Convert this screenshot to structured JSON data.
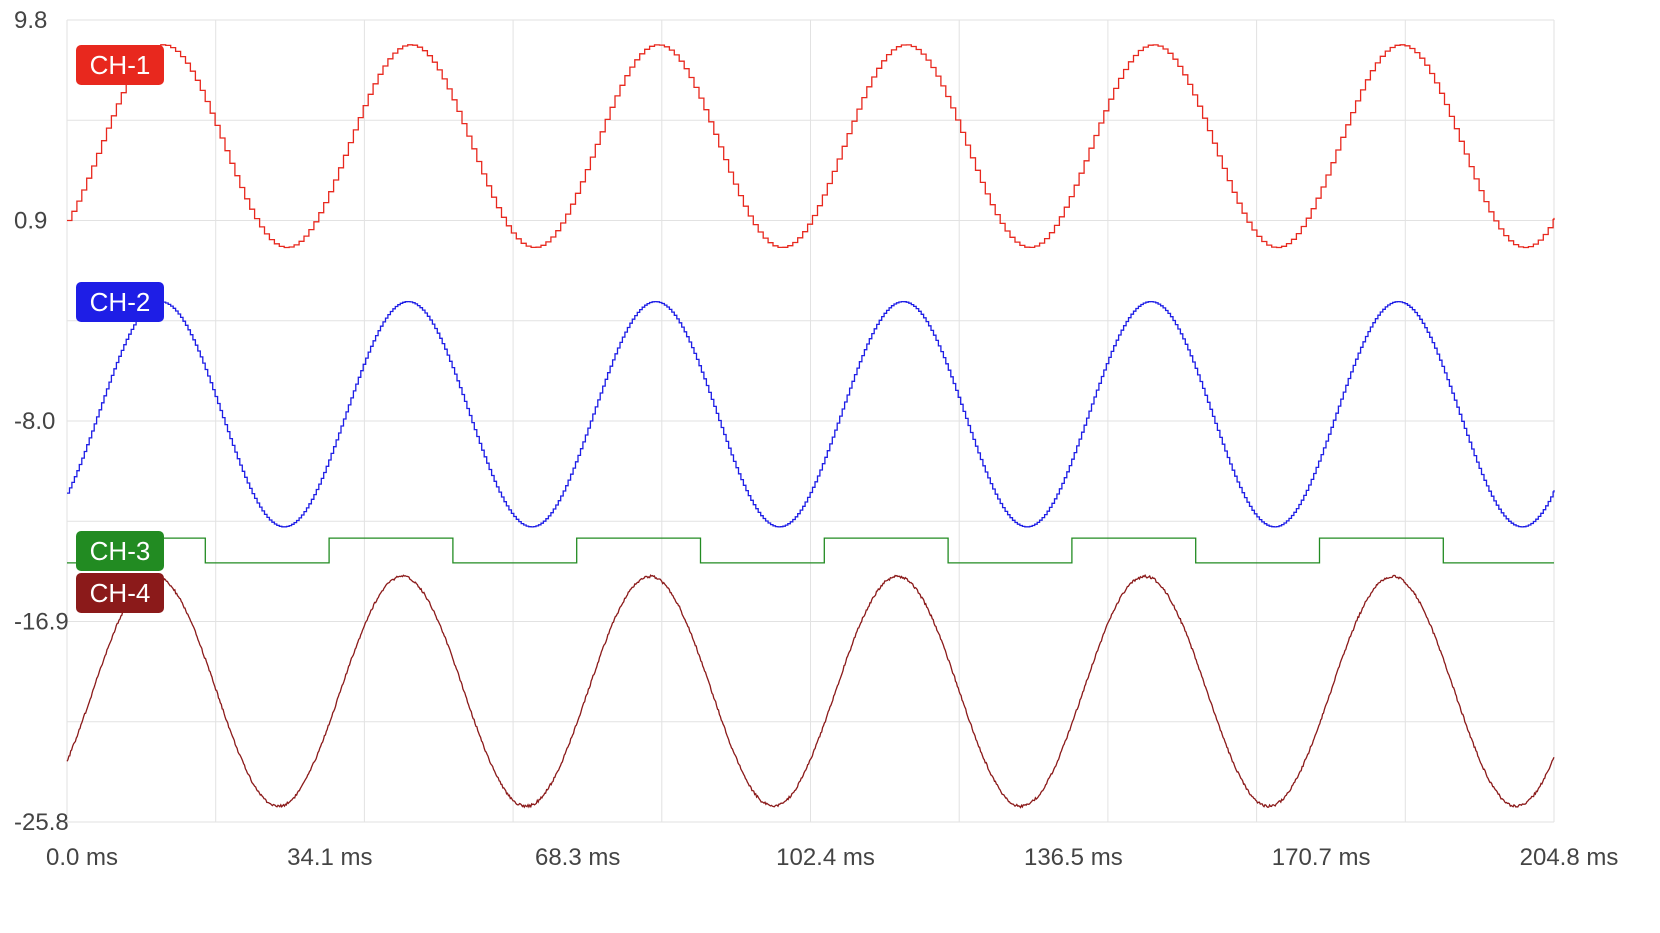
{
  "chart_data": {
    "type": "line",
    "title": "",
    "xlabel": "",
    "ylabel": "",
    "x_unit": "ms",
    "xlim": [
      0.0,
      204.8
    ],
    "ylim": [
      -25.8,
      9.8
    ],
    "x_ticks": [
      "0.0 ms",
      "34.1 ms",
      "68.3 ms",
      "102.4 ms",
      "136.5 ms",
      "170.7 ms",
      "204.8 ms"
    ],
    "y_ticks": [
      "9.8",
      "0.9",
      "-8.0",
      "-16.9",
      "-25.8"
    ],
    "grid": true,
    "legend": "inline-left",
    "series": [
      {
        "name": "CH-1",
        "color": "#e8281e",
        "waveform": "stepped-sine",
        "period_ms": 34.1,
        "high": 8.7,
        "low": -0.3,
        "start": 0.9,
        "phase": "rising",
        "step_ms": 0.68
      },
      {
        "name": "CH-2",
        "color": "#1e1ee6",
        "waveform": "stepped-sine",
        "period_ms": 34.1,
        "high": -2.7,
        "low": -12.7,
        "start": -11.2,
        "phase": "rising",
        "step_ms": 0.34
      },
      {
        "name": "CH-3",
        "color": "#228b22",
        "waveform": "square",
        "period_ms": 34.1,
        "high": -13.2,
        "low": -14.3,
        "start": -13.2,
        "duty": 0.5
      },
      {
        "name": "CH-4",
        "color": "#8b1a1a",
        "waveform": "sine",
        "period_ms": 34.1,
        "high": -14.9,
        "low": -25.1,
        "start": -23.1,
        "phase": "rising"
      }
    ]
  }
}
